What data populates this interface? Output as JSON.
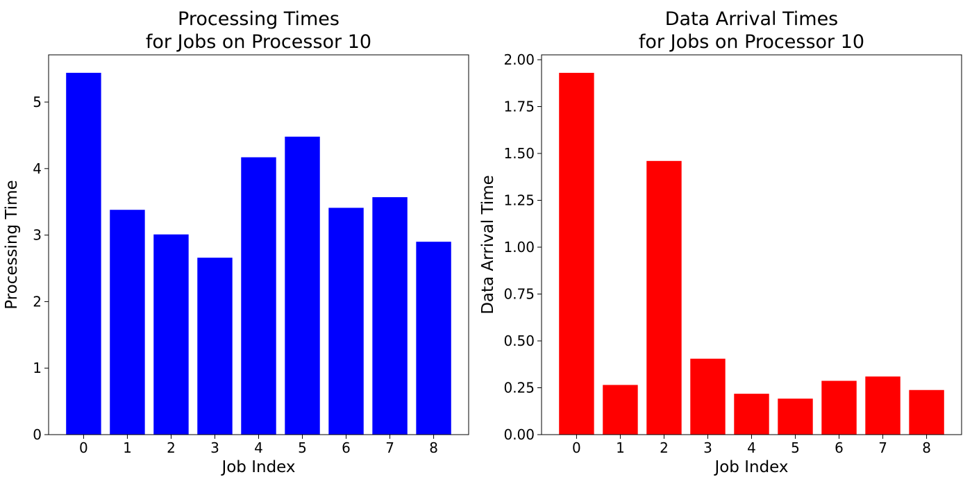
{
  "chart_data": [
    {
      "type": "bar",
      "title": [
        "Processing Times",
        "for Jobs on Processor 10"
      ],
      "xlabel": "Job Index",
      "ylabel": "Processing Time",
      "categories": [
        "0",
        "1",
        "2",
        "3",
        "4",
        "5",
        "6",
        "7",
        "8"
      ],
      "values": [
        5.44,
        3.38,
        3.01,
        2.66,
        4.17,
        4.48,
        3.41,
        3.57,
        2.9
      ],
      "yticks": [
        0,
        1,
        2,
        3,
        4,
        5
      ],
      "ytick_labels": [
        "0",
        "1",
        "2",
        "3",
        "4",
        "5"
      ],
      "ylim": [
        0,
        5.71
      ],
      "color": "#0000ff",
      "grid": false,
      "legend": "none"
    },
    {
      "type": "bar",
      "title": [
        "Data Arrival Times",
        "for Jobs on Processor 10"
      ],
      "xlabel": "Job Index",
      "ylabel": "Data Arrival Time",
      "categories": [
        "0",
        "1",
        "2",
        "3",
        "4",
        "5",
        "6",
        "7",
        "8"
      ],
      "values": [
        1.93,
        0.265,
        1.46,
        0.405,
        0.218,
        0.192,
        0.287,
        0.31,
        0.238
      ],
      "yticks": [
        0,
        0.25,
        0.5,
        0.75,
        1.0,
        1.25,
        1.5,
        1.75,
        2.0
      ],
      "ytick_labels": [
        "0.00",
        "0.25",
        "0.50",
        "0.75",
        "1.00",
        "1.25",
        "1.50",
        "1.75",
        "2.00"
      ],
      "ylim": [
        0,
        2.026
      ],
      "color": "#ff0000",
      "grid": false,
      "legend": "none"
    }
  ]
}
